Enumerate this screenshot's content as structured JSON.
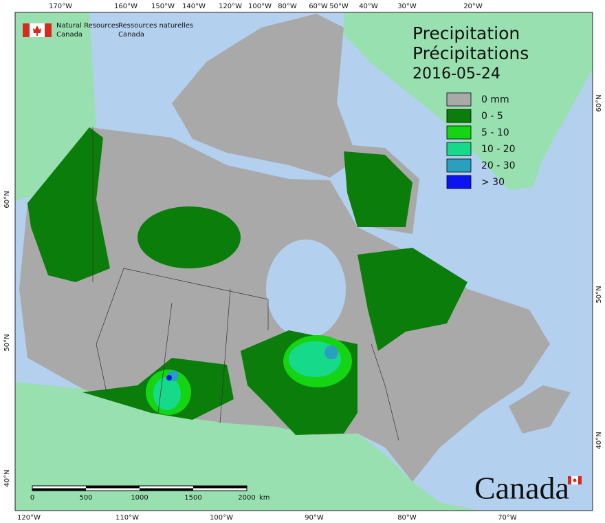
{
  "agency": {
    "english": [
      "Natural Resources",
      "Canada"
    ],
    "french": [
      "Ressources naturelles",
      "Canada"
    ]
  },
  "title": [
    "Precipitation",
    "Précipitations"
  ],
  "date": "2016-05-24",
  "legend": [
    {
      "label": "0 mm",
      "color": "#a9a9a9"
    },
    {
      "label": "0 - 5",
      "color": "#0a7d0a"
    },
    {
      "label": "5 - 10",
      "color": "#14d414"
    },
    {
      "label": "10 - 20",
      "color": "#16d98a"
    },
    {
      "label": "20 - 30",
      "color": "#2a9fc0"
    },
    {
      "label": "> 30",
      "color": "#0a14f0"
    }
  ],
  "graticule": {
    "top": [
      "170°W",
      "160°W",
      "150°W",
      "140°W",
      "120°W",
      "100°W",
      "80°W",
      "60°W",
      "50°W",
      "40°W",
      "30°W",
      "20°W"
    ],
    "bottom": [
      "120°W",
      "110°W",
      "100°W",
      "90°W",
      "80°W",
      "70°W"
    ],
    "left": [
      "60°N",
      "50°N",
      "40°N"
    ],
    "right": [
      "60°N",
      "50°N",
      "40°N"
    ]
  },
  "scale_bar": {
    "ticks": [
      "0",
      "500",
      "1000",
      "1500",
      "2000"
    ],
    "unit": "km"
  },
  "wordmark": "Canada"
}
